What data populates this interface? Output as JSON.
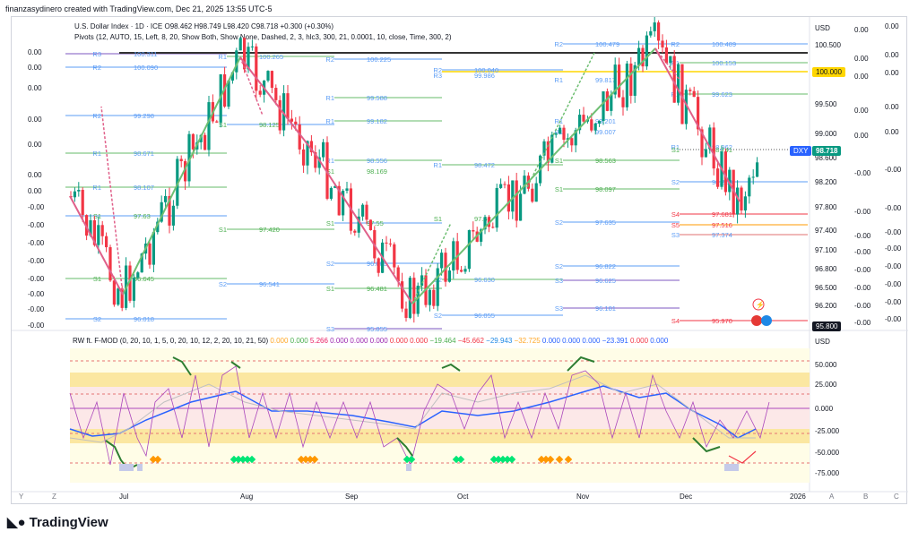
{
  "header": {
    "text": "finanzasydinero created with TradingView.com, Dec 21, 2025 13:55 UTC-5"
  },
  "symbol": {
    "name": "U.S. Dollar Index · 1D · ICE",
    "ohlc": "O98.462 H98.749 L98.420 C98.718 +0.300 (+0.30%)",
    "pivots": "Pivots (12, AUTO, 15, Left, 8, 20, Show Both, Show None, Dashed, 2, 3, hlc3, 300, 21, 0.0001, 10, close, Time, 300, 2)",
    "ticker": "DXY",
    "last_price": "98.718",
    "marked_price": "100.000",
    "low_price": "95.800"
  },
  "price_scale": {
    "currency": "USD",
    "ticks": [
      "100.500",
      "100.000",
      "99.500",
      "99.000",
      "98.600",
      "98.200",
      "97.800",
      "97.400",
      "97.100",
      "96.800",
      "96.500",
      "96.200",
      "95.800"
    ]
  },
  "left_labels": [
    "0.00",
    "0.00",
    "0.00",
    "0.00",
    "0.00",
    "0.00",
    "0.00",
    "-0.00",
    "-0.00",
    "-0.00",
    "-0.00",
    "-0.00",
    "-0.00",
    "-0.00",
    "-0.00"
  ],
  "right_labels": [
    "0.00",
    "0.00",
    "0.00",
    "0.00",
    "0.00",
    "-0.00",
    "-0.00",
    "-0.00",
    "-0.00",
    "-0.00",
    "-0.00",
    "-0.00",
    "-0.00"
  ],
  "far_right_labels": [
    "0.00",
    "0.00",
    "0.00",
    "0.00",
    "0.00",
    "-0.00",
    "-0.00",
    "-0.00",
    "-0.00",
    "-0.00",
    "-0.00",
    "-0.00",
    "-0.00"
  ],
  "pivot_labels": [
    {
      "lvl": "R3",
      "val": "100.311"
    },
    {
      "lvl": "R2",
      "val": "100.090"
    },
    {
      "lvl": "R2",
      "val": "99.298"
    },
    {
      "lvl": "R1",
      "val": "98.671"
    },
    {
      "lvl": "R1",
      "val": "98.107"
    },
    {
      "lvl": "S1",
      "val": "97.63"
    },
    {
      "lvl": "S1",
      "val": "96.645"
    },
    {
      "lvl": "S2",
      "val": "96.018"
    },
    {
      "lvl": "R1",
      "val": "100.265"
    },
    {
      "lvl": "S1",
      "val": "98.125"
    },
    {
      "lvl": "S1",
      "val": "97.420"
    },
    {
      "lvl": "S2",
      "val": "96.541"
    },
    {
      "lvl": "R2",
      "val": "100.225"
    },
    {
      "lvl": "R1",
      "val": "99.588"
    },
    {
      "lvl": "R1",
      "val": "99.182"
    },
    {
      "lvl": "R1",
      "val": "98.556"
    },
    {
      "lvl": "S1",
      "val": "98.169"
    },
    {
      "lvl": "S1",
      "val": "97.55"
    },
    {
      "lvl": "S2",
      "val": "96.883"
    },
    {
      "lvl": "S1",
      "val": "96.481"
    },
    {
      "lvl": "S3",
      "val": "95.855"
    },
    {
      "lvl": "R2",
      "val": "100.040"
    },
    {
      "lvl": "R3",
      "val": "99.986"
    },
    {
      "lvl": "R1",
      "val": "98.472"
    },
    {
      "lvl": "S1",
      "val": "97.62"
    },
    {
      "lvl": "S2",
      "val": "96.630"
    },
    {
      "lvl": "S2",
      "val": "96.055"
    },
    {
      "lvl": "R2",
      "val": "100.479"
    },
    {
      "lvl": "R1",
      "val": "99.817"
    },
    {
      "lvl": "R1",
      "val": "99.201"
    },
    {
      "lvl": "R1",
      "val": "99.007"
    },
    {
      "lvl": "S1",
      "val": "98.563"
    },
    {
      "lvl": "S1",
      "val": "98.097"
    },
    {
      "lvl": "S2",
      "val": "97.635"
    },
    {
      "lvl": "S2",
      "val": "96.822"
    },
    {
      "lvl": "S3",
      "val": "96.625"
    },
    {
      "lvl": "S3",
      "val": "96.181"
    },
    {
      "lvl": "R2",
      "val": "100.489"
    },
    {
      "lvl": "R1",
      "val": "100.153"
    },
    {
      "lvl": "R1",
      "val": "99.623"
    },
    {
      "lvl": "R1",
      "val": "98.962"
    },
    {
      "lvl": "S1",
      "val": "98.741"
    },
    {
      "lvl": "S2",
      "val": "98.218"
    },
    {
      "lvl": "S4",
      "val": "97.681"
    },
    {
      "lvl": "S5",
      "val": "97.516"
    },
    {
      "lvl": "S3",
      "val": "97.374"
    },
    {
      "lvl": "S4",
      "val": "95.970"
    }
  ],
  "oscillator": {
    "legend": "RW ft. F-MOD (0, 20, 10, 1, 5, 0, 20, 10, 12, 2, 20, 10, 21, 50)",
    "values": [
      "0.000",
      "0.000",
      "5.266",
      "0.000",
      "0.000",
      "0.000",
      "0.000",
      "0.000",
      "−19.464",
      "−45.662",
      "−29.943",
      "−32.725",
      "0.000",
      "0.000",
      "0.000",
      "−23.391",
      "0.000",
      "0.000"
    ],
    "scale_currency": "USD",
    "scale": [
      "50.000",
      "25.000",
      "0.000",
      "-25.000",
      "-50.000",
      "-75.000"
    ]
  },
  "time_axis": [
    "Jul",
    "Aug",
    "Sep",
    "Oct",
    "Nov",
    "Dec",
    "2026"
  ],
  "axis_buttons": {
    "left": [
      "Y",
      "Z"
    ],
    "right": [
      "A",
      "B",
      "C"
    ]
  },
  "logo": {
    "text": "TradingView"
  },
  "colors": {
    "up": "#089981",
    "down": "#f23645",
    "accent": "#2962ff",
    "zigzag_up": "#6fbf73",
    "zigzag_down": "#e0608a"
  }
}
